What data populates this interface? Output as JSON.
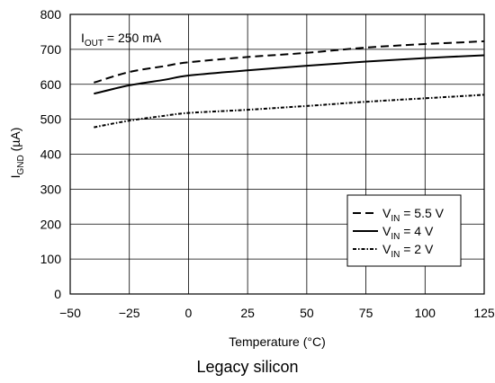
{
  "chart_data": {
    "type": "line",
    "annotation": {
      "main": "I",
      "sub": "OUT",
      "rest": " = 250 mA"
    },
    "xlabel": "Temperature (°C)",
    "ylabel": {
      "main": "I",
      "sub": "GND",
      "rest": " (µA)"
    },
    "xlim": [
      -50,
      125
    ],
    "ylim": [
      0,
      800
    ],
    "xticks": [
      -50,
      -25,
      0,
      25,
      50,
      75,
      100,
      125
    ],
    "xtick_labels": [
      "−50",
      "−25",
      "0",
      "25",
      "50",
      "75",
      "100",
      "125"
    ],
    "yticks": [
      0,
      100,
      200,
      300,
      400,
      500,
      600,
      700,
      800
    ],
    "ytick_labels": [
      "0",
      "100",
      "200",
      "300",
      "400",
      "500",
      "600",
      "700",
      "800"
    ],
    "grid": true,
    "legend_position": "bottom-right",
    "series": [
      {
        "name": "5.5 V",
        "legend": {
          "main": "V",
          "sub": "IN",
          "rest": " = 5.5 V"
        },
        "style": "dashed",
        "x": [
          -40,
          -25,
          -10,
          0,
          25,
          50,
          75,
          100,
          125
        ],
        "y": [
          605,
          635,
          652,
          663,
          678,
          690,
          705,
          715,
          723
        ]
      },
      {
        "name": "4 V",
        "legend": {
          "main": "V",
          "sub": "IN",
          "rest": " = 4 V"
        },
        "style": "solid",
        "x": [
          -40,
          -25,
          -10,
          0,
          25,
          50,
          75,
          100,
          125
        ],
        "y": [
          573,
          597,
          613,
          625,
          640,
          653,
          665,
          675,
          683
        ]
      },
      {
        "name": "2 V",
        "legend": {
          "main": "V",
          "sub": "IN",
          "rest": " = 2 V"
        },
        "style": "dashdot",
        "x": [
          -40,
          -25,
          -10,
          0,
          25,
          50,
          75,
          100,
          125
        ],
        "y": [
          477,
          496,
          510,
          518,
          527,
          538,
          550,
          560,
          570
        ]
      }
    ]
  },
  "caption": "Legacy silicon"
}
